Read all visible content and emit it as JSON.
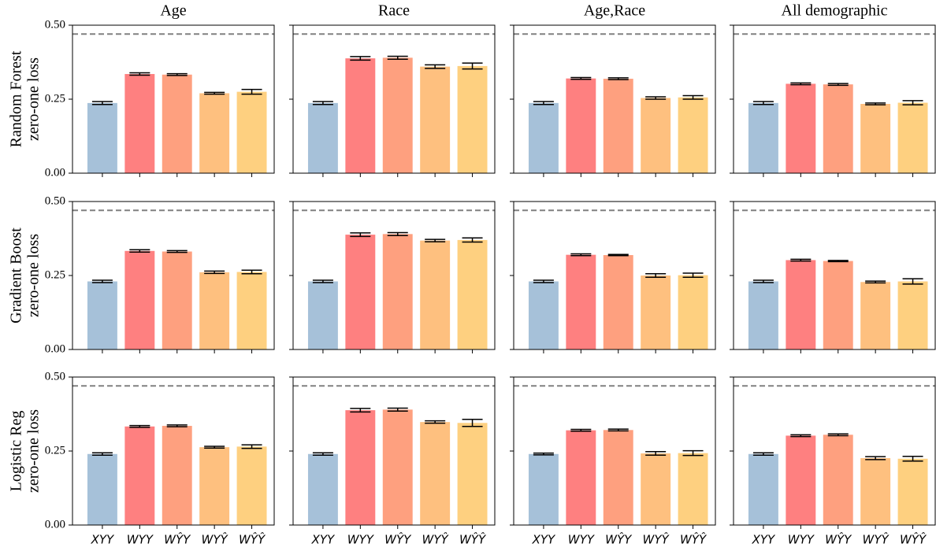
{
  "chart_data": [
    {
      "type": "bar",
      "title": "Age",
      "ylabel": [
        "Random Forest",
        "zero-one loss"
      ],
      "categories": [
        "XYY",
        "WYY",
        "WŶY",
        "WYŶ",
        "WŶŶ"
      ],
      "values": [
        0.237,
        0.335,
        0.333,
        0.27,
        0.275
      ],
      "errors": [
        0.005,
        0.004,
        0.003,
        0.003,
        0.008
      ],
      "colors": [
        "#a6c1d9",
        "#fe8080",
        "#fea07f",
        "#fec07f",
        "#fed080"
      ],
      "ylim": [
        0,
        0.5
      ],
      "yticks": [
        {
          "value": 0,
          "label": "0.00"
        },
        {
          "value": 0.25,
          "label": "0.25"
        },
        {
          "value": 0.5,
          "label": "0.50"
        }
      ],
      "hline": 0.47
    },
    {
      "type": "bar",
      "title": "Race",
      "categories": [
        "XYY",
        "WYY",
        "WŶY",
        "WYŶ",
        "WŶŶ"
      ],
      "values": [
        0.237,
        0.388,
        0.39,
        0.36,
        0.362
      ],
      "errors": [
        0.005,
        0.006,
        0.005,
        0.006,
        0.01
      ],
      "colors": [
        "#a6c1d9",
        "#fe8080",
        "#fea07f",
        "#fec07f",
        "#fed080"
      ],
      "ylim": [
        0,
        0.5
      ],
      "yticks": [
        {
          "value": 0,
          "label": "0.00"
        },
        {
          "value": 0.25,
          "label": "0.25"
        },
        {
          "value": 0.5,
          "label": "0.50"
        }
      ],
      "hline": 0.47
    },
    {
      "type": "bar",
      "title": "Age,Race",
      "categories": [
        "XYY",
        "WYY",
        "WŶY",
        "WYŶ",
        "WŶŶ"
      ],
      "values": [
        0.237,
        0.32,
        0.319,
        0.254,
        0.256
      ],
      "errors": [
        0.005,
        0.003,
        0.003,
        0.004,
        0.006
      ],
      "colors": [
        "#a6c1d9",
        "#fe8080",
        "#fea07f",
        "#fec07f",
        "#fed080"
      ],
      "ylim": [
        0,
        0.5
      ],
      "yticks": [
        {
          "value": 0,
          "label": "0.00"
        },
        {
          "value": 0.25,
          "label": "0.25"
        },
        {
          "value": 0.5,
          "label": "0.50"
        }
      ],
      "hline": 0.47
    },
    {
      "type": "bar",
      "title": "All demographic",
      "categories": [
        "XYY",
        "WYY",
        "WŶY",
        "WYŶ",
        "WŶŶ"
      ],
      "values": [
        0.237,
        0.302,
        0.3,
        0.234,
        0.238
      ],
      "errors": [
        0.005,
        0.003,
        0.003,
        0.003,
        0.007
      ],
      "colors": [
        "#a6c1d9",
        "#fe8080",
        "#fea07f",
        "#fec07f",
        "#fed080"
      ],
      "ylim": [
        0,
        0.5
      ],
      "yticks": [
        {
          "value": 0,
          "label": "0.00"
        },
        {
          "value": 0.25,
          "label": "0.25"
        },
        {
          "value": 0.5,
          "label": "0.50"
        }
      ],
      "hline": 0.47
    },
    {
      "type": "bar",
      "ylabel": [
        "Gradient Boost",
        "zero-one loss"
      ],
      "categories": [
        "XYY",
        "WYY",
        "WŶY",
        "WYŶ",
        "WŶŶ"
      ],
      "values": [
        0.23,
        0.333,
        0.331,
        0.261,
        0.262
      ],
      "errors": [
        0.004,
        0.004,
        0.003,
        0.004,
        0.006
      ],
      "colors": [
        "#a6c1d9",
        "#fe8080",
        "#fea07f",
        "#fec07f",
        "#fed080"
      ],
      "ylim": [
        0,
        0.5
      ],
      "yticks": [
        {
          "value": 0,
          "label": "0.00"
        },
        {
          "value": 0.25,
          "label": "0.25"
        },
        {
          "value": 0.5,
          "label": "0.50"
        }
      ],
      "hline": 0.47
    },
    {
      "type": "bar",
      "categories": [
        "XYY",
        "WYY",
        "WŶY",
        "WYŶ",
        "WŶŶ"
      ],
      "values": [
        0.23,
        0.388,
        0.39,
        0.368,
        0.37
      ],
      "errors": [
        0.004,
        0.006,
        0.005,
        0.004,
        0.007
      ],
      "colors": [
        "#a6c1d9",
        "#fe8080",
        "#fea07f",
        "#fec07f",
        "#fed080"
      ],
      "ylim": [
        0,
        0.5
      ],
      "yticks": [
        {
          "value": 0,
          "label": "0.00"
        },
        {
          "value": 0.25,
          "label": "0.25"
        },
        {
          "value": 0.5,
          "label": "0.50"
        }
      ],
      "hline": 0.47
    },
    {
      "type": "bar",
      "categories": [
        "XYY",
        "WYY",
        "WŶY",
        "WYŶ",
        "WŶŶ"
      ],
      "values": [
        0.23,
        0.32,
        0.319,
        0.25,
        0.251
      ],
      "errors": [
        0.004,
        0.003,
        0.002,
        0.006,
        0.007
      ],
      "colors": [
        "#a6c1d9",
        "#fe8080",
        "#fea07f",
        "#fec07f",
        "#fed080"
      ],
      "ylim": [
        0,
        0.5
      ],
      "yticks": [
        {
          "value": 0,
          "label": "0.00"
        },
        {
          "value": 0.25,
          "label": "0.25"
        },
        {
          "value": 0.5,
          "label": "0.50"
        }
      ],
      "hline": 0.47
    },
    {
      "type": "bar",
      "categories": [
        "XYY",
        "WYY",
        "WŶY",
        "WYŶ",
        "WŶŶ"
      ],
      "values": [
        0.23,
        0.302,
        0.299,
        0.228,
        0.23
      ],
      "errors": [
        0.004,
        0.003,
        0.002,
        0.003,
        0.009
      ],
      "colors": [
        "#a6c1d9",
        "#fe8080",
        "#fea07f",
        "#fec07f",
        "#fed080"
      ],
      "ylim": [
        0,
        0.5
      ],
      "yticks": [
        {
          "value": 0,
          "label": "0.00"
        },
        {
          "value": 0.25,
          "label": "0.25"
        },
        {
          "value": 0.5,
          "label": "0.50"
        }
      ],
      "hline": 0.47
    },
    {
      "type": "bar",
      "ylabel": [
        "Logistic Reg",
        "zero-one loss"
      ],
      "categories": [
        "XYY",
        "WYY",
        "WŶY",
        "WYŶ",
        "WŶŶ"
      ],
      "values": [
        0.24,
        0.333,
        0.335,
        0.263,
        0.265
      ],
      "errors": [
        0.004,
        0.003,
        0.003,
        0.003,
        0.006
      ],
      "colors": [
        "#a6c1d9",
        "#fe8080",
        "#fea07f",
        "#fec07f",
        "#fed080"
      ],
      "ylim": [
        0,
        0.5
      ],
      "yticks": [
        {
          "value": 0,
          "label": "0.00"
        },
        {
          "value": 0.25,
          "label": "0.25"
        },
        {
          "value": 0.5,
          "label": "0.50"
        }
      ],
      "hline": 0.47
    },
    {
      "type": "bar",
      "categories": [
        "XYY",
        "WYY",
        "WŶY",
        "WYŶ",
        "WŶŶ"
      ],
      "values": [
        0.24,
        0.388,
        0.39,
        0.348,
        0.345
      ],
      "errors": [
        0.004,
        0.006,
        0.005,
        0.004,
        0.012
      ],
      "colors": [
        "#a6c1d9",
        "#fe8080",
        "#fea07f",
        "#fec07f",
        "#fed080"
      ],
      "ylim": [
        0,
        0.5
      ],
      "yticks": [
        {
          "value": 0,
          "label": "0.00"
        },
        {
          "value": 0.25,
          "label": "0.25"
        },
        {
          "value": 0.5,
          "label": "0.50"
        }
      ],
      "hline": 0.47
    },
    {
      "type": "bar",
      "categories": [
        "XYY",
        "WYY",
        "WŶY",
        "WYŶ",
        "WŶŶ"
      ],
      "values": [
        0.24,
        0.32,
        0.321,
        0.242,
        0.243
      ],
      "errors": [
        0.003,
        0.003,
        0.003,
        0.006,
        0.008
      ],
      "colors": [
        "#a6c1d9",
        "#fe8080",
        "#fea07f",
        "#fec07f",
        "#fed080"
      ],
      "ylim": [
        0,
        0.5
      ],
      "yticks": [
        {
          "value": 0,
          "label": "0.00"
        },
        {
          "value": 0.25,
          "label": "0.25"
        },
        {
          "value": 0.5,
          "label": "0.50"
        }
      ],
      "hline": 0.47
    },
    {
      "type": "bar",
      "categories": [
        "XYY",
        "WYY",
        "WŶY",
        "WYŶ",
        "WŶŶ"
      ],
      "values": [
        0.24,
        0.302,
        0.305,
        0.226,
        0.224
      ],
      "errors": [
        0.004,
        0.003,
        0.003,
        0.005,
        0.008
      ],
      "colors": [
        "#a6c1d9",
        "#fe8080",
        "#fea07f",
        "#fec07f",
        "#fed080"
      ],
      "ylim": [
        0,
        0.5
      ],
      "yticks": [
        {
          "value": 0,
          "label": "0.00"
        },
        {
          "value": 0.25,
          "label": "0.25"
        },
        {
          "value": 0.5,
          "label": "0.50"
        }
      ],
      "hline": 0.47
    }
  ]
}
